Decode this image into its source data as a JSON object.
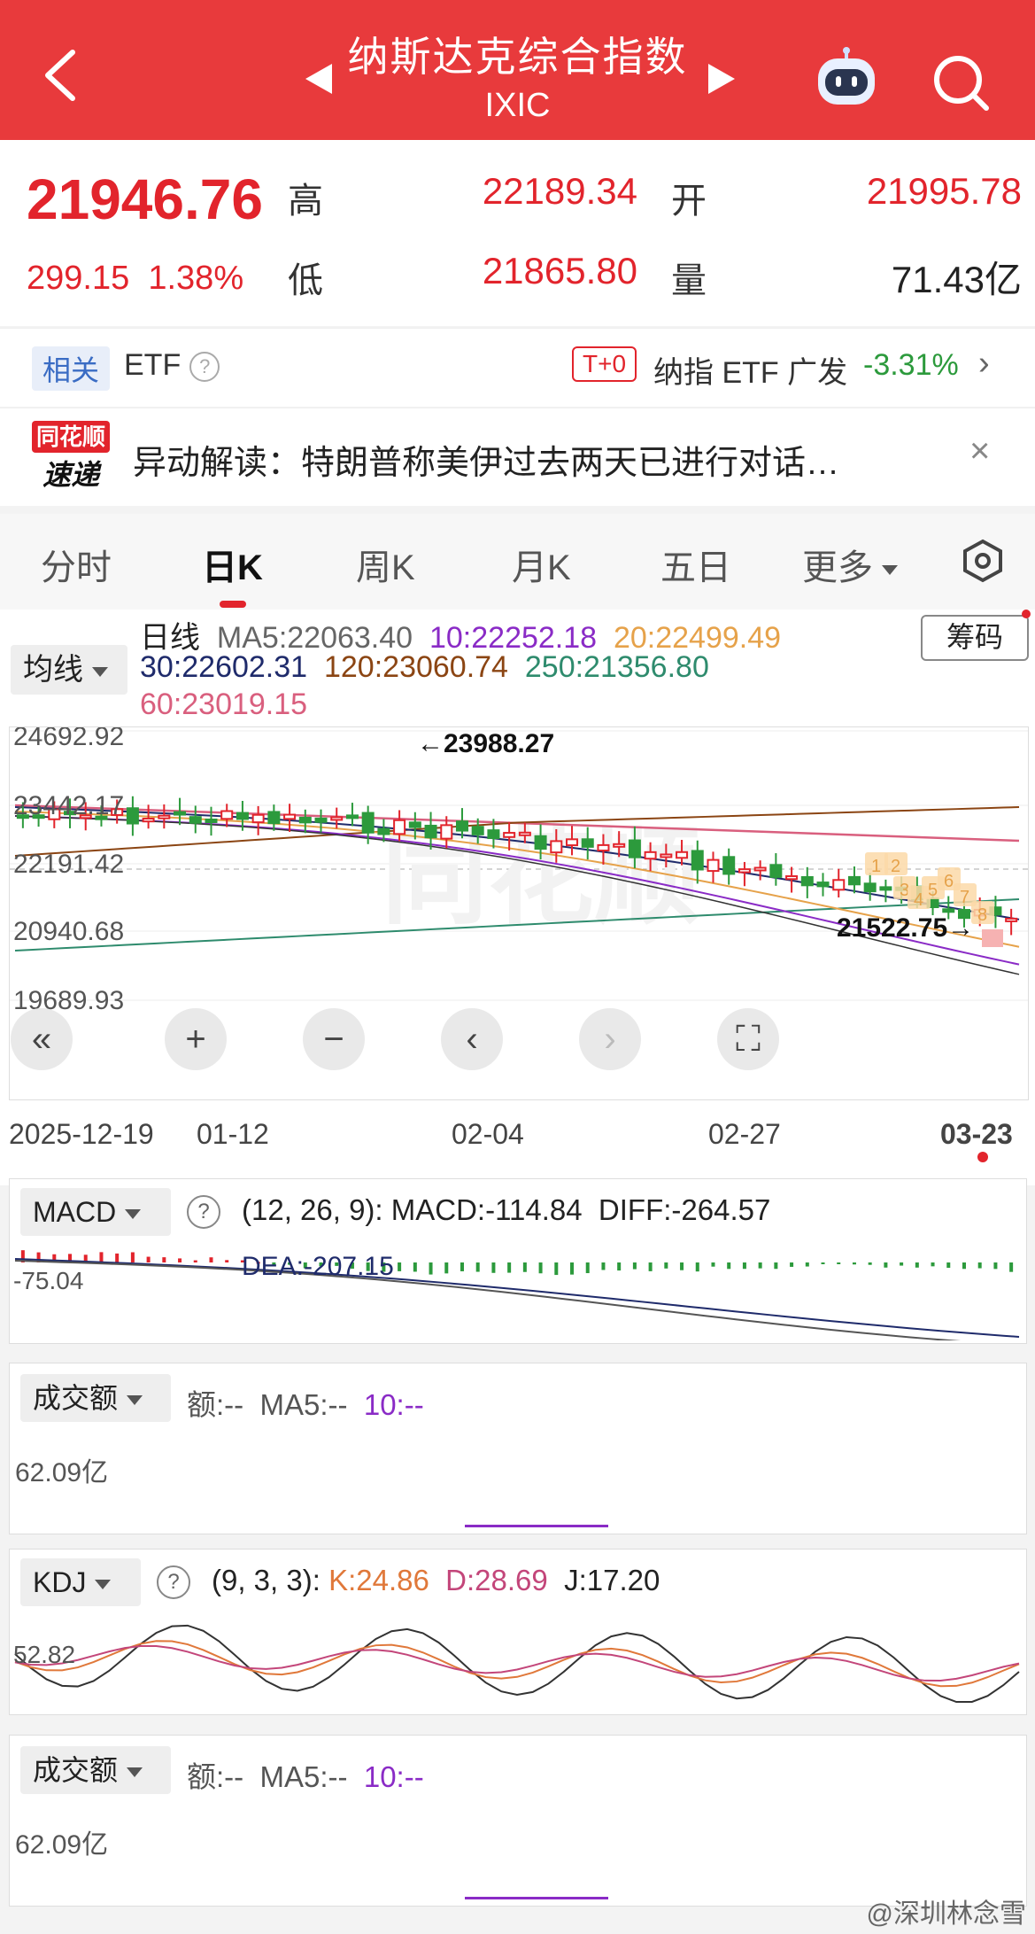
{
  "header": {
    "title": "纳斯达克综合指数",
    "subtitle": "IXIC"
  },
  "quote": {
    "price": "21946.76",
    "change": "299.15",
    "change_pct": "1.38%",
    "high_label": "高",
    "high": "22189.34",
    "low_label": "低",
    "low": "21865.80",
    "open_label": "开",
    "open": "21995.78",
    "volume_label": "量",
    "volume": "71.43亿"
  },
  "etf": {
    "tag": "相关",
    "label": "ETF",
    "tplus": "T+0",
    "name": "纳指 ETF 广发",
    "pct": "-3.31%",
    "chevron": "›"
  },
  "news": {
    "logo_top": "同花顺",
    "logo_bottom": "速递",
    "text": "异动解读：特朗普称美伊过去两天已进行对话…",
    "close": "×"
  },
  "tabs": [
    "分时",
    "日K",
    "周K",
    "月K",
    "五日",
    "更多"
  ],
  "ma": {
    "dropdown": "均线",
    "line_label": "日线",
    "ma5": "MA5:22063.40",
    "ma10": "10:22252.18",
    "ma20": "20:22499.49",
    "ma30": "30:22602.31",
    "ma120": "120:23060.74",
    "ma250": "250:21356.80",
    "ma60": "60:23019.15",
    "chip_button": "筹码"
  },
  "price_axis": {
    "labels": [
      "24692.92",
      "23442.17",
      "22191.42",
      "20940.68",
      "19689.93"
    ],
    "max_annotation": "←23988.27",
    "min_annotation": "21522.75→",
    "watermark": "同花顺"
  },
  "dates": [
    "2025-12-19",
    "01-12",
    "02-04",
    "02-27",
    "03-23"
  ],
  "macd": {
    "dropdown": "MACD",
    "params": "(12, 26, 9):",
    "macd": "MACD:-114.84",
    "diff": "DIFF:-264.57",
    "dea": "DEA:-207.15",
    "axis_label": "-75.04"
  },
  "amount1": {
    "dropdown": "成交额",
    "amt": "额:--",
    "ma5": "MA5:--",
    "ma10": "10:--",
    "axis_label": "62.09亿"
  },
  "kdj": {
    "dropdown": "KDJ",
    "params": "(9, 3, 3):",
    "k": "K:24.86",
    "d": "D:28.69",
    "j": "J:17.20",
    "axis_label": "52.82"
  },
  "amount2": {
    "dropdown": "成交额",
    "amt": "额:--",
    "ma5": "MA5:--",
    "ma10": "10:--",
    "axis_label": "62.09亿"
  },
  "footer": {
    "watermark": "@深圳林念雪"
  },
  "colors": {
    "header_red": "#e83a3c",
    "up": "#e2242c",
    "down": "#2c9a3c",
    "ma5": "#333333",
    "ma10": "#8a2bc6",
    "ma20": "#e6a24a",
    "ma30": "#1f2b6b",
    "ma60": "#d95f7e",
    "ma120": "#8b4513",
    "ma250": "#2e8b6d"
  }
}
